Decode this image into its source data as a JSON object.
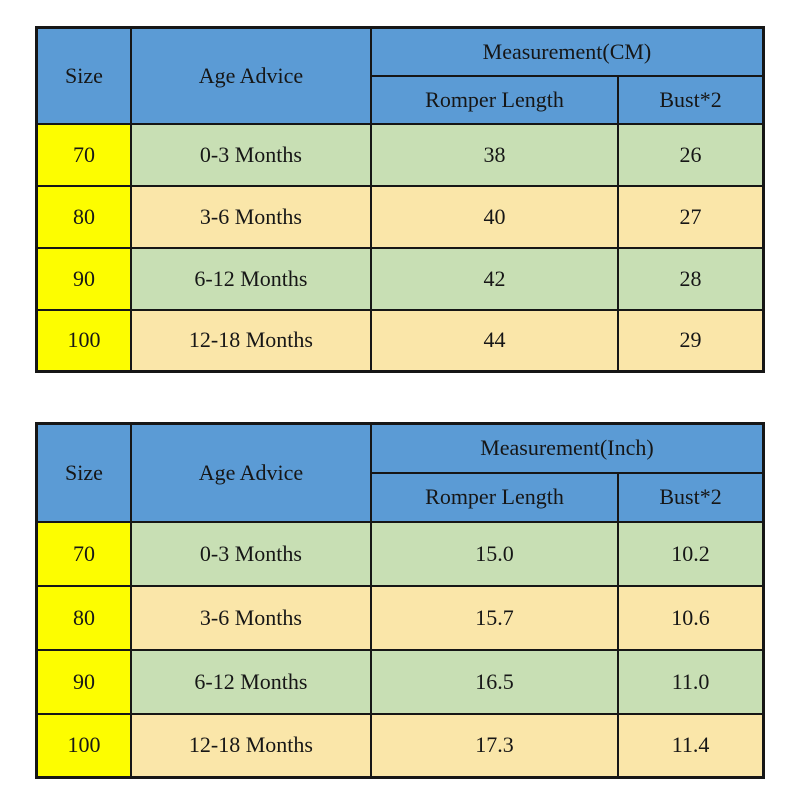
{
  "colors": {
    "page_bg": "#ffffff",
    "header_blue": "#5b9bd5",
    "size_yellow": "#fdfd00",
    "row_green": "#c8dfb4",
    "row_tan": "#fae6a9",
    "border": "#161616",
    "text": "#161616"
  },
  "tables": [
    {
      "measurement_label": "Measurement(CM)",
      "headers": {
        "size": "Size",
        "age": "Age Advice",
        "romper": "Romper Length",
        "bust": "Bust*2"
      },
      "rows": [
        {
          "size": "70",
          "age": "0-3 Months",
          "romper": "38",
          "bust": "26"
        },
        {
          "size": "80",
          "age": "3-6 Months",
          "romper": "40",
          "bust": "27"
        },
        {
          "size": "90",
          "age": "6-12 Months",
          "romper": "42",
          "bust": "28"
        },
        {
          "size": "100",
          "age": "12-18 Months",
          "romper": "44",
          "bust": "29"
        }
      ]
    },
    {
      "measurement_label": "Measurement(Inch)",
      "headers": {
        "size": "Size",
        "age": "Age Advice",
        "romper": "Romper Length",
        "bust": "Bust*2"
      },
      "rows": [
        {
          "size": "70",
          "age": "0-3 Months",
          "romper": "15.0",
          "bust": "10.2"
        },
        {
          "size": "80",
          "age": "3-6 Months",
          "romper": "15.7",
          "bust": "10.6"
        },
        {
          "size": "90",
          "age": "6-12 Months",
          "romper": "16.5",
          "bust": "11.0"
        },
        {
          "size": "100",
          "age": "12-18 Months",
          "romper": "17.3",
          "bust": "11.4"
        }
      ]
    }
  ]
}
